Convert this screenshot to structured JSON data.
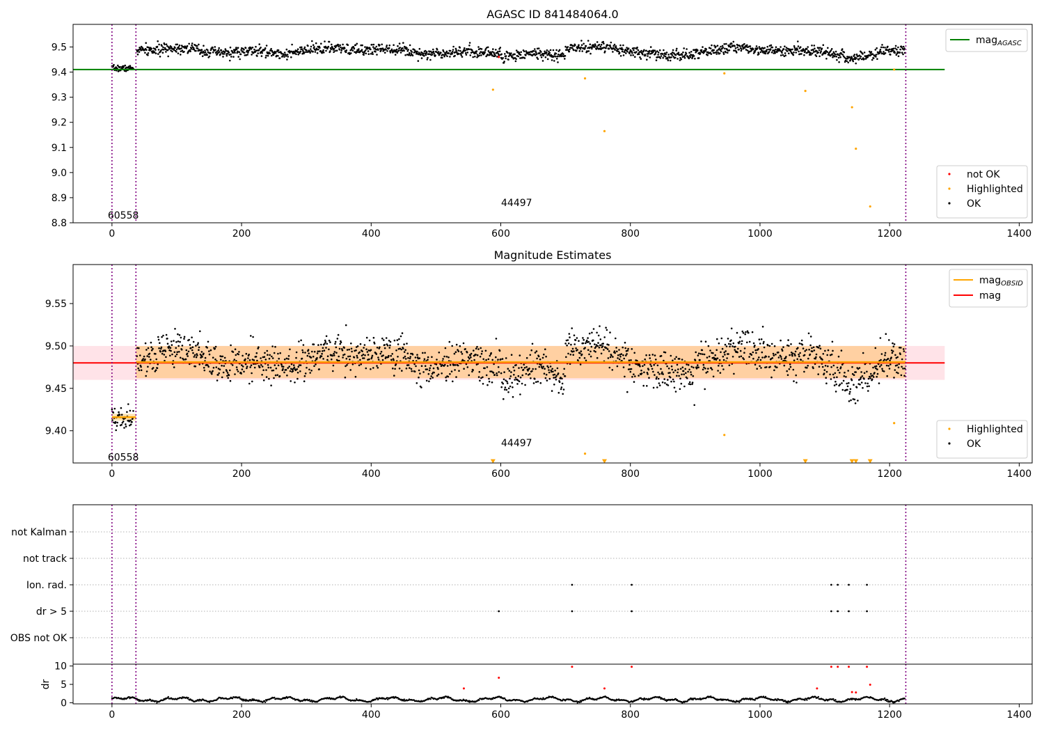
{
  "chart_data": [
    {
      "type": "scatter",
      "title": "AGASC ID 841484064.0",
      "xlabel": "",
      "ylabel": "",
      "xlim": [
        -60,
        1420
      ],
      "ylim": [
        8.8,
        9.59
      ],
      "x_ticks": [
        "0",
        "200",
        "400",
        "600",
        "800",
        "1000",
        "1200",
        "1400"
      ],
      "y_ticks": [
        "8.8",
        "8.9",
        "9.0",
        "9.1",
        "9.2",
        "9.3",
        "9.4",
        "9.5"
      ],
      "grid": false,
      "vertical_lines": [
        0,
        37,
        1225
      ],
      "annotations": [
        {
          "text": "60558",
          "x": 0,
          "y": 8.83
        },
        {
          "text": "44497",
          "x": 607,
          "y": 8.88
        }
      ],
      "line_legend": {
        "placement": "top-right",
        "entries": [
          {
            "main": "mag",
            "sub": "AGASC",
            "color": "#008000"
          }
        ]
      },
      "marker_legend": {
        "placement": "lower-right",
        "entries": [
          {
            "label": "not OK",
            "color": "#ff0000"
          },
          {
            "label": "Highlighted",
            "color": "#ffa500"
          },
          {
            "label": "OK",
            "color": "#000000"
          }
        ]
      },
      "reference_line": {
        "name": "mag_AGASC",
        "y": 9.41,
        "x0": -60,
        "x1": 1285,
        "color": "#008000"
      },
      "obs_segments": [
        {
          "x0": 0,
          "x1": 37,
          "level": 9.415,
          "sigma": 0.006
        },
        {
          "x0": 37,
          "x1": 1225,
          "level": 9.485,
          "sigma": 0.012
        }
      ],
      "series": [
        {
          "name": "not OK",
          "color": "#ff0000",
          "points": [
            [
              597,
              9.46
            ]
          ]
        },
        {
          "name": "Highlighted",
          "color": "#ffa500",
          "points": [
            [
              588,
              9.33
            ],
            [
              730,
              9.375
            ],
            [
              760,
              9.165
            ],
            [
              945,
              9.395
            ],
            [
              1070,
              9.325
            ],
            [
              1142,
              9.26
            ],
            [
              1148,
              9.095
            ],
            [
              1170,
              8.865
            ],
            [
              1207,
              9.41
            ]
          ]
        }
      ]
    },
    {
      "type": "scatter",
      "title": "Magnitude Estimates",
      "xlabel": "",
      "ylabel": "",
      "xlim": [
        -60,
        1420
      ],
      "ylim": [
        9.362,
        9.596
      ],
      "x_ticks": [
        "0",
        "200",
        "400",
        "600",
        "800",
        "1000",
        "1200",
        "1400"
      ],
      "y_ticks": [
        "9.40",
        "9.45",
        "9.50",
        "9.55"
      ],
      "grid": false,
      "vertical_lines": [
        0,
        37,
        1225
      ],
      "annotations": [
        {
          "text": "60558",
          "x": 0,
          "y": 9.369
        },
        {
          "text": "44497",
          "x": 607,
          "y": 9.386
        }
      ],
      "line_legend": {
        "placement": "top-right",
        "entries": [
          {
            "main": "mag",
            "sub": "OBSID",
            "color": "#ffa500"
          },
          {
            "main": "mag",
            "sub": "",
            "color": "#ff0000"
          }
        ]
      },
      "marker_legend": {
        "placement": "lower-right",
        "entries": [
          {
            "label": "Highlighted",
            "color": "#ffa500"
          },
          {
            "label": "OK",
            "color": "#000000"
          }
        ]
      },
      "mag_line": {
        "name": "mag",
        "y": 9.48,
        "x0": -60,
        "x1": 1285,
        "color": "#ff0000"
      },
      "mag_band": {
        "y0": 9.46,
        "y1": 9.5,
        "x0": -60,
        "x1": 1285,
        "color": "#ffc0cb"
      },
      "obsid_lines": [
        {
          "x0": 0,
          "x1": 37,
          "y": 9.416,
          "y0": 9.412,
          "y1": 9.42,
          "color": "#ffa500"
        },
        {
          "x0": 37,
          "x1": 1225,
          "y": 9.481,
          "y0": 9.462,
          "y1": 9.5,
          "color": "#ffa500"
        }
      ],
      "series": [
        {
          "name": "Highlighted",
          "color": "#ffa500",
          "points": [
            [
              730,
              9.373
            ],
            [
              945,
              9.395
            ],
            [
              1207,
              9.409
            ]
          ]
        },
        {
          "name": "Highlighted (below axis)",
          "color": "#ffa500",
          "marker": "triangle-down",
          "points": [
            [
              588,
              9.364
            ],
            [
              760,
              9.364
            ],
            [
              1070,
              9.364
            ],
            [
              1142,
              9.364
            ],
            [
              1148,
              9.364
            ],
            [
              1170,
              9.364
            ]
          ]
        }
      ]
    },
    {
      "type": "scatter",
      "title": "",
      "xlabel": "",
      "ylabel": "",
      "xlim": [
        -60,
        1420
      ],
      "categories": [
        "not Kalman",
        "not track",
        "Ion. rad.",
        "dr > 5",
        "OBS not OK"
      ],
      "grid": true,
      "vertical_lines": [
        0,
        37,
        1225
      ],
      "flags": [
        {
          "category": "Ion. rad.",
          "x": [
            710,
            802,
            1110,
            1120,
            1137,
            1165
          ]
        },
        {
          "category": "dr > 5",
          "x": [
            597,
            710,
            802,
            1110,
            1120,
            1137,
            1165
          ]
        }
      ]
    },
    {
      "type": "scatter",
      "title": "",
      "xlabel": "",
      "ylabel": "dr",
      "xlim": [
        -60,
        1420
      ],
      "ylim": [
        -0.3,
        10.5
      ],
      "x_ticks": [
        "0",
        "200",
        "400",
        "600",
        "800",
        "1000",
        "1200",
        "1400"
      ],
      "y_ticks": [
        "0",
        "5",
        "10"
      ],
      "grid": false,
      "vertical_lines": [
        0,
        37,
        1225
      ],
      "series": [
        {
          "name": "dr (outliers)",
          "color": "#ff0000",
          "points": [
            [
              543,
              3.9
            ],
            [
              597,
              6.8
            ],
            [
              710,
              9.8
            ],
            [
              760,
              3.9
            ],
            [
              802,
              9.8
            ],
            [
              1088,
              3.9
            ],
            [
              1110,
              9.8
            ],
            [
              1120,
              9.8
            ],
            [
              1137,
              9.8
            ],
            [
              1142,
              2.9
            ],
            [
              1148,
              2.8
            ],
            [
              1165,
              9.8
            ],
            [
              1170,
              4.9
            ]
          ]
        }
      ]
    }
  ]
}
